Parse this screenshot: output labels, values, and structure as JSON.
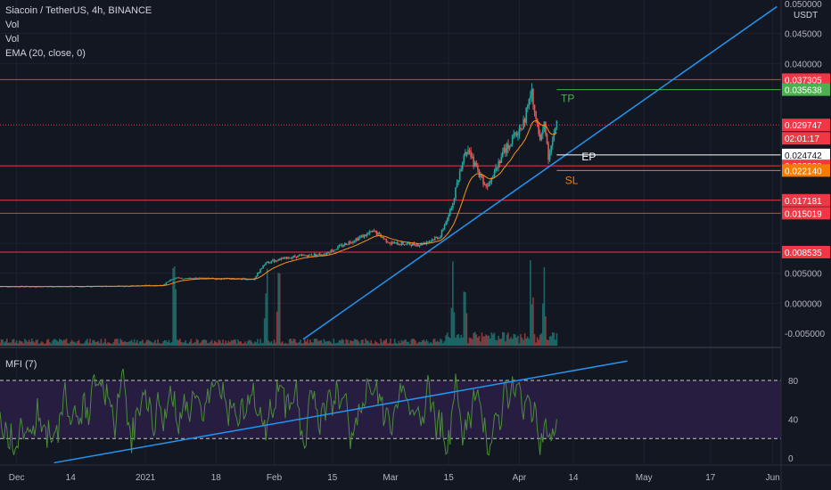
{
  "legend": {
    "symbol": "Siacoin / TetherUS, 4h, BINANCE",
    "vol1": "Vol",
    "vol2": "Vol",
    "ema": "EMA (20, close, 0)"
  },
  "mfi_label": "MFI (7)",
  "currency": "USDT",
  "colors": {
    "background": "#131722",
    "up": "#26a69a",
    "down": "#ef5350",
    "ema": "#f7931a",
    "trendline": "#2196f3",
    "level": "#f23645",
    "tp": "#4caf50",
    "ep": "#ffffff",
    "sl": "#f57c00",
    "mfi_line": "#4c8b3a",
    "mfi_band": "#2a1f45"
  },
  "chart_data": {
    "type": "candlestick",
    "x_axis_labels": [
      "Dec",
      "14",
      "2021",
      "18",
      "Feb",
      "15",
      "Mar",
      "15",
      "Apr",
      "14",
      "May",
      "17",
      "Jun"
    ],
    "y_axis": {
      "min": -0.006,
      "max": 0.05,
      "ticks": [
        "0.050000",
        "0.045000",
        "0.040000",
        "0.005000",
        "0.000000",
        "-0.005000"
      ]
    },
    "price_labels": [
      {
        "value": 0.037305,
        "text": "0.037305",
        "color": "#f23645"
      },
      {
        "value": 0.035638,
        "text": "0.035638",
        "color": "#4caf50"
      },
      {
        "value": 0.029747,
        "text": "0.029747",
        "color": "#f23645"
      },
      {
        "value": 0.028,
        "text": "02:01:17",
        "color": "#f23645"
      },
      {
        "value": 0.024742,
        "text": "0.024742",
        "color": "#ffffff"
      },
      {
        "value": 0.02292,
        "text": "0.022920",
        "color": "#f23645"
      },
      {
        "value": 0.02214,
        "text": "0.022140",
        "color": "#f57c00"
      },
      {
        "value": 0.017181,
        "text": "0.017181",
        "color": "#f23645"
      },
      {
        "value": 0.015019,
        "text": "0.015019",
        "color": "#f23645"
      },
      {
        "value": 0.008535,
        "text": "0.008535",
        "color": "#f23645"
      }
    ],
    "horizontal_levels": [
      0.037305,
      0.02292,
      0.017181,
      0.015019,
      0.008535
    ],
    "dotted_level": 0.029747,
    "annotations": [
      {
        "text": "TP",
        "value": 0.035638,
        "color": "#4caf50"
      },
      {
        "text": "EP",
        "value": 0.024742,
        "color": "#ffffff"
      },
      {
        "text": "SL",
        "value": 0.02214,
        "color": "#f57c00"
      }
    ],
    "price_path": [
      {
        "date": "2020-11-27",
        "price": 0.0028
      },
      {
        "date": "2020-12-20",
        "price": 0.0028
      },
      {
        "date": "2021-01-05",
        "price": 0.003
      },
      {
        "date": "2021-01-08",
        "price": 0.0042
      },
      {
        "date": "2021-01-20",
        "price": 0.0041
      },
      {
        "date": "2021-01-27",
        "price": 0.004
      },
      {
        "date": "2021-01-30",
        "price": 0.0068
      },
      {
        "date": "2021-02-06",
        "price": 0.0078
      },
      {
        "date": "2021-02-13",
        "price": 0.0082
      },
      {
        "date": "2021-02-20",
        "price": 0.0105
      },
      {
        "date": "2021-02-25",
        "price": 0.012
      },
      {
        "date": "2021-03-01",
        "price": 0.01
      },
      {
        "date": "2021-03-08",
        "price": 0.0098
      },
      {
        "date": "2021-03-13",
        "price": 0.0112
      },
      {
        "date": "2021-03-16",
        "price": 0.017
      },
      {
        "date": "2021-03-19",
        "price": 0.026
      },
      {
        "date": "2021-03-24",
        "price": 0.0195
      },
      {
        "date": "2021-03-28",
        "price": 0.025
      },
      {
        "date": "2021-04-02",
        "price": 0.03
      },
      {
        "date": "2021-04-04",
        "price": 0.0355
      },
      {
        "date": "2021-04-06",
        "price": 0.027
      },
      {
        "date": "2021-04-07",
        "price": 0.031
      },
      {
        "date": "2021-04-08",
        "price": 0.0245
      },
      {
        "date": "2021-04-10",
        "price": 0.0297
      }
    ],
    "trendline_price": {
      "from": {
        "date": "2021-02-08",
        "price": -0.006
      },
      "to": {
        "date": "2021-06-02",
        "price": 0.0495
      }
    },
    "mfi": {
      "label": "MFI (7)",
      "ticks": [
        80,
        40,
        0
      ],
      "upper_band": 80,
      "lower_band": 20,
      "trendline": {
        "from": {
          "date": "2020-12-10",
          "value": -5
        },
        "to": {
          "date": "2021-04-27",
          "value": 100
        }
      }
    }
  }
}
